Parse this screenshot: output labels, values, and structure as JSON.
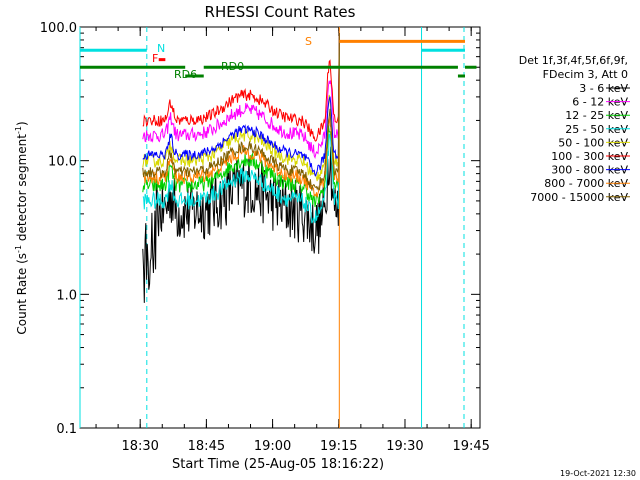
{
  "chart_data": {
    "type": "line",
    "title": "RHESSI Count Rates",
    "xlabel": "Start Time (25-Aug-05 18:16:22)",
    "ylabel_prefix": "Count Rate (s",
    "ylabel_mid": " detector segment",
    "ylabel_suffix": ")",
    "ylabel_sup": "-1",
    "yscale": "log",
    "ylim": [
      0.1,
      100.0
    ],
    "xlim_minutes": [
      18.2727,
      19.7833
    ],
    "x_ticks": [
      {
        "label": "18:30",
        "t": 18.5
      },
      {
        "label": "18:45",
        "t": 18.75
      },
      {
        "label": "19:00",
        "t": 19.0
      },
      {
        "label": "19:15",
        "t": 19.25
      },
      {
        "label": "19:30",
        "t": 19.5
      },
      {
        "label": "19:45",
        "t": 19.75
      }
    ],
    "y_ticks": [
      {
        "label": "0.1",
        "v": 0.1
      },
      {
        "label": "1.0",
        "v": 1.0
      },
      {
        "label": "10.0",
        "v": 10.0
      },
      {
        "label": "100.0",
        "v": 100.0
      }
    ],
    "legend_header": [
      "Det 1f,3f,4f,5f,6f,9f,",
      "FDecim 3, Att 0"
    ],
    "series": [
      {
        "name": "3 - 6 keV",
        "color": "#000000",
        "level": 4.2,
        "noise": 0.55,
        "earlyLow": true
      },
      {
        "name": "6 - 12 keV",
        "color": "#ff00ff",
        "level": 15.5,
        "noise": 0.12
      },
      {
        "name": "12 - 25 keV",
        "color": "#00d000",
        "level": 6.5,
        "noise": 0.14
      },
      {
        "name": "25 - 50 keV",
        "color": "#00e0e0",
        "level": 5.0,
        "noise": 0.15
      },
      {
        "name": "50 - 100 keV",
        "color": "#d8d800",
        "level": 10.0,
        "noise": 0.12
      },
      {
        "name": "100 - 300 keV",
        "color": "#ff0000",
        "level": 20.0,
        "noise": 0.1
      },
      {
        "name": "300 - 800 keV",
        "color": "#0000ff",
        "level": 11.0,
        "noise": 0.09
      },
      {
        "name": "800 - 7000 keV",
        "color": "#ff8000",
        "level": 7.5,
        "noise": 0.12
      },
      {
        "name": "7000 - 15000 keV",
        "color": "#806000",
        "level": 8.2,
        "noise": 0.1
      }
    ],
    "vertical_lines": [
      {
        "t": 18.2727,
        "color": "#00e0e0",
        "style": "solid"
      },
      {
        "t": 18.525,
        "color": "#00e0e0",
        "style": "dashed"
      },
      {
        "t": 19.252,
        "color": "#ff8000",
        "style": "solid"
      },
      {
        "t": 19.5625,
        "color": "#00e0e0",
        "style": "solid"
      },
      {
        "t": 19.749,
        "color": "#ff8000",
        "style": "dashed"
      },
      {
        "t": 19.798,
        "color": "#00e0e0",
        "style": "dashed"
      }
    ],
    "flag_bars": [
      {
        "label": "N",
        "color": "#00e0e0",
        "v": 67.0,
        "segments": [
          [
            18.2727,
            18.525
          ],
          [
            19.5625,
            19.8
          ]
        ]
      },
      {
        "label": "F",
        "color": "#ff0000",
        "v": 57.0,
        "segments": [
          [
            18.57,
            18.595
          ]
        ]
      },
      {
        "label": "S",
        "color": "#ff8000",
        "v": 78.0,
        "segments": [
          [
            19.252,
            19.749
          ]
        ]
      },
      {
        "label": "RD0",
        "color": "#008000",
        "v": 50.0,
        "segments": [
          [
            18.2727,
            18.67
          ],
          [
            18.74,
            19.7
          ],
          [
            19.77,
            19.8
          ]
        ]
      },
      {
        "label": "RD6",
        "color": "#008000",
        "v": 43.0,
        "segments": [
          [
            18.67,
            18.74
          ],
          [
            19.7,
            19.77
          ]
        ]
      }
    ],
    "footer_stamp": "19-Oct-2021 12:30"
  }
}
